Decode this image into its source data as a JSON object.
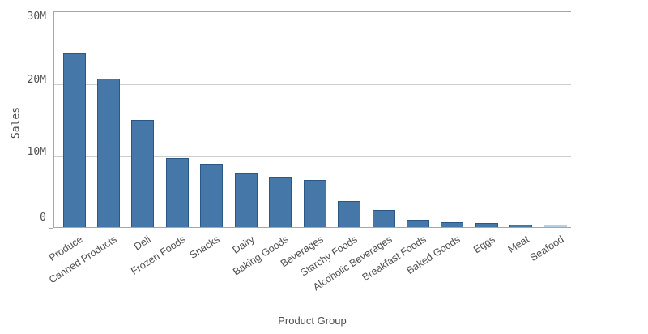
{
  "chart_data": {
    "type": "bar",
    "title": "",
    "xlabel": "Product Group",
    "ylabel": "Sales",
    "categories": [
      "Produce",
      "Canned Products",
      "Deli",
      "Frozen Foods",
      "Snacks",
      "Dairy",
      "Baking Goods",
      "Beverages",
      "Starchy Foods",
      "Alcoholic Beverages",
      "Breakfast Foods",
      "Baked Goods",
      "Eggs",
      "Meat",
      "Seafood"
    ],
    "values": [
      24.2,
      20.6,
      14.8,
      9.6,
      8.8,
      7.4,
      7.0,
      6.5,
      3.6,
      2.4,
      1.0,
      0.65,
      0.55,
      0.35,
      0.15
    ],
    "value_unit": "M",
    "ylim": [
      0,
      30
    ],
    "y_ticks": [
      {
        "label": "30M",
        "value": 30
      },
      {
        "label": "20M",
        "value": 20
      },
      {
        "label": "10M",
        "value": 10
      },
      {
        "label": "0",
        "value": 0
      }
    ],
    "grid": true,
    "legend": "none",
    "bar_color": "#4577a9",
    "bar_border_color": "#2a5784",
    "tiny_bar_color": "#b9cfe2",
    "grid_color": "#cdcdcd",
    "axis_color": "#a6a6a6",
    "text_color": "#4d4d4d"
  }
}
